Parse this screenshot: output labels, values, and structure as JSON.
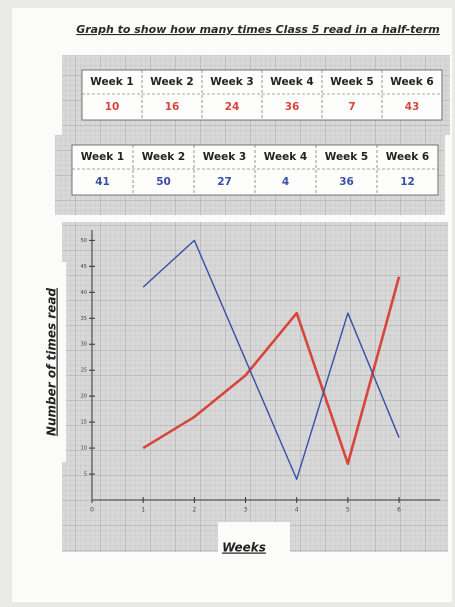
{
  "chart_data": {
    "type": "line",
    "title": "Graph to show how many times Class 5 read in a half-term",
    "tables": [
      {
        "header": [
          "Week 1",
          "Week 2",
          "Week 3",
          "Week 4",
          "Week 5",
          "Week 6"
        ]
      },
      {
        "header": [
          "Week 1",
          "Week 2",
          "Week 3",
          "Week 4",
          "Week 5",
          "Week 6"
        ]
      }
    ],
    "x": [
      1,
      2,
      3,
      4,
      5,
      6
    ],
    "series": [
      {
        "color": "#d8453c",
        "values": [
          10,
          16,
          24,
          36,
          7,
          43
        ]
      },
      {
        "color": "#3a4ea6",
        "values": [
          41,
          50,
          27,
          4,
          36,
          12
        ]
      }
    ],
    "xlim": [
      0,
      6.8
    ],
    "ylim": [
      0,
      52
    ],
    "xticks": [
      0,
      1,
      2,
      3,
      4,
      5,
      6
    ],
    "yticks": [
      5,
      10,
      15,
      20,
      25,
      30,
      35,
      40,
      45,
      50
    ],
    "xlabel": "Weeks",
    "ylabel": "Number of times read"
  }
}
